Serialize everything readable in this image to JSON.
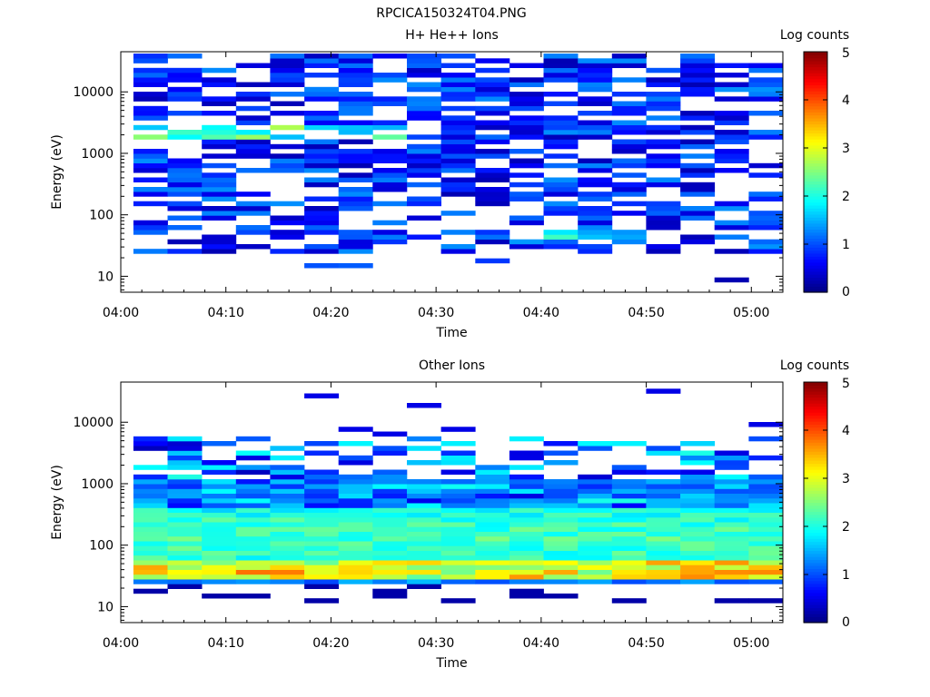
{
  "figure_title": "RPCICA150324T04.PNG",
  "chart_data": [
    {
      "type": "heatmap",
      "title": "H+ He++ Ions",
      "xlabel": "Time",
      "ylabel": "Energy (eV)",
      "x_ticks": [
        "04:00",
        "04:10",
        "04:20",
        "04:30",
        "04:40",
        "04:50",
        "05:00"
      ],
      "x_range": [
        "04:00",
        "05:03"
      ],
      "y_scale": "log",
      "y_ticks": [
        "10",
        "100",
        "1000",
        "10000"
      ],
      "y_range": [
        5.5,
        45000
      ],
      "colorbar": {
        "label": "Log counts",
        "ticks": [
          "0",
          "1",
          "2",
          "3",
          "4",
          "5"
        ],
        "range": [
          0,
          5
        ]
      },
      "dominant_pattern": "sparse low counts (log 0.2-1.5) across 25 eV - 40 keV, brighter band (log ~1.5-2.5) near 2-3 keV early in the hour, isolated higher counts near 35-50 eV around 04:45-04:50"
    },
    {
      "type": "heatmap",
      "title": "Other Ions",
      "xlabel": "Time",
      "ylabel": "Energy (eV)",
      "x_ticks": [
        "04:00",
        "04:10",
        "04:20",
        "04:30",
        "04:40",
        "04:50",
        "05:00"
      ],
      "x_range": [
        "04:00",
        "05:03"
      ],
      "y_scale": "log",
      "y_ticks": [
        "10",
        "100",
        "1000",
        "10000"
      ],
      "y_range": [
        5.5,
        45000
      ],
      "colorbar": {
        "label": "Log counts",
        "ticks": [
          "0",
          "1",
          "2",
          "3",
          "4",
          "5"
        ],
        "range": [
          0,
          5
        ]
      },
      "dominant_pattern": "dense band 25 eV - 1 keV with peak counts (log ~3-3.8) near 30-50 eV; sparse low counts 1-5 keV; scattered pixels at 8-20 eV and above 10 keV"
    }
  ]
}
